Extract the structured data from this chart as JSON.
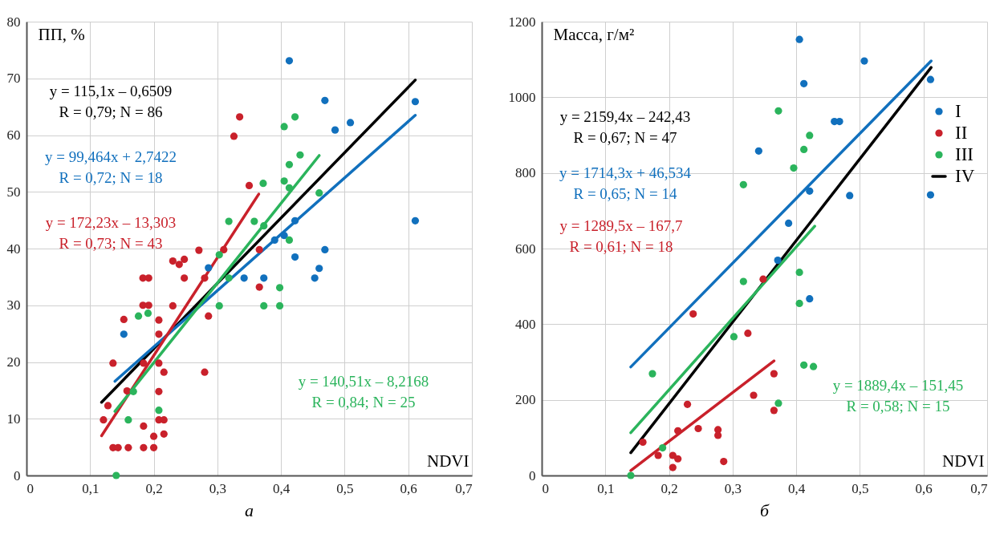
{
  "chart_data": [
    {
      "type": "scatter",
      "title": "а",
      "xlabel": "NDVI",
      "ylabel": "ПП, %",
      "xlim": [
        0,
        0.7
      ],
      "xticks": [
        0,
        {
          "value": 0.1,
          "label": "0,1"
        },
        {
          "value": 0.2,
          "label": "0,2"
        },
        {
          "value": 0.3,
          "label": "0,3"
        },
        {
          "value": 0.4,
          "label": "0,4"
        },
        {
          "value": 0.5,
          "label": "0,5"
        },
        {
          "value": 0.6,
          "label": "0,6"
        },
        {
          "value": 0.7,
          "label": "0,7"
        }
      ],
      "ylim": [
        0,
        80
      ],
      "yticks": [
        0,
        10,
        20,
        30,
        40,
        50,
        60,
        70,
        80
      ],
      "grid": true,
      "line_style": "solid",
      "annotations": [
        "y = 115,1x – 0,6509\nR = 0,79; N = 86",
        "y = 99,464x + 2,7422\nR = 0,72; N = 18",
        "y = 172,23x – 13,303\nR = 0,73; N = 43",
        "y = 140,51x – 8,2168\nR = 0,84; N = 25"
      ],
      "series": [
        {
          "marker": "circle",
          "color": "#1170bd",
          "x": [
            0.153,
            0.286,
            0.342,
            0.373,
            0.413,
            0.469,
            0.611,
            0.509,
            0.485,
            0.422,
            0.611,
            0.39,
            0.405,
            0.469,
            0.422,
            0.46,
            0.453
          ],
          "values": [
            24.9,
            36.6,
            34.8,
            34.8,
            73.1,
            66.1,
            65.9,
            62.2,
            60.9,
            44.9,
            44.9,
            41.5,
            42.3,
            39.8,
            38.5,
            36.5,
            34.8
          ]
        },
        {
          "marker": "circle",
          "color": "#c9212b",
          "x": [
            0.335,
            0.326,
            0.35,
            0.271,
            0.31,
            0.248,
            0.23,
            0.24,
            0.248,
            0.28,
            0.183,
            0.192,
            0.183,
            0.192,
            0.23,
            0.366,
            0.366,
            0.153,
            0.286,
            0.208,
            0.208,
            0.136,
            0.184,
            0.208,
            0.216,
            0.28,
            0.158,
            0.208,
            0.128,
            0.121,
            0.208,
            0.216,
            0.184,
            0.216,
            0.2,
            0.136,
            0.144,
            0.16,
            0.184,
            0.2
          ],
          "values": [
            63.2,
            59.8,
            51.1,
            39.7,
            39.8,
            38.1,
            37.8,
            37.2,
            34.8,
            34.8,
            34.8,
            34.8,
            30.0,
            30.0,
            29.9,
            39.8,
            33.2,
            27.5,
            28.1,
            27.4,
            24.9,
            19.8,
            19.8,
            19.8,
            18.2,
            18.2,
            14.9,
            14.8,
            12.3,
            9.8,
            9.8,
            9.8,
            8.7,
            7.3,
            6.9,
            4.9,
            4.9,
            4.9,
            4.9,
            4.9
          ]
        },
        {
          "marker": "circle",
          "color": "#2bb45c",
          "x": [
            0.141,
            0.16,
            0.168,
            0.208,
            0.176,
            0.191,
            0.303,
            0.303,
            0.318,
            0.318,
            0.358,
            0.372,
            0.422,
            0.405,
            0.43,
            0.413,
            0.405,
            0.413,
            0.46,
            0.373,
            0.413,
            0.398,
            0.373,
            0.398
          ],
          "values": [
            0,
            9.8,
            14.8,
            11.5,
            28.1,
            28.6,
            29.9,
            38.9,
            44.8,
            34.8,
            44.8,
            51.5,
            63.2,
            61.5,
            56.5,
            54.8,
            51.9,
            50.7,
            49.8,
            44.0,
            41.5,
            33.1,
            29.9,
            29.9
          ]
        },
        {
          "type": "line",
          "marker": "none",
          "color": "#000000",
          "x": [
            0.118,
            0.611
          ],
          "values": [
            12.9,
            69.7
          ]
        },
        {
          "type": "line",
          "marker": "none",
          "color": "#1170bd",
          "x": [
            0.139,
            0.611
          ],
          "values": [
            16.6,
            63.5
          ]
        },
        {
          "type": "line",
          "marker": "none",
          "color": "#c9212b",
          "x": [
            0.118,
            0.365
          ],
          "values": [
            7.0,
            49.6
          ]
        },
        {
          "type": "line",
          "marker": "none",
          "color": "#2bb45c",
          "x": [
            0.139,
            0.46
          ],
          "values": [
            11.3,
            56.4
          ]
        }
      ]
    },
    {
      "type": "scatter",
      "title": "б",
      "xlabel": "NDVI",
      "ylabel": "Масса, г/м²",
      "xlim": [
        0,
        0.7
      ],
      "xticks": [
        0,
        {
          "value": 0.1,
          "label": "0,1"
        },
        {
          "value": 0.2,
          "label": "0,2"
        },
        {
          "value": 0.3,
          "label": "0,3"
        },
        {
          "value": 0.4,
          "label": "0,4"
        },
        {
          "value": 0.5,
          "label": "0,5"
        },
        {
          "value": 0.6,
          "label": "0,6"
        },
        {
          "value": 0.7,
          "label": "0,7"
        }
      ],
      "ylim": [
        0,
        1200
      ],
      "yticks": [
        0,
        200,
        400,
        600,
        800,
        1000,
        1200
      ],
      "grid": true,
      "line_style": "solid",
      "legend": "top right",
      "annotations": [
        "y = 2159,4x – 242,43\nR = 0,67; N = 47",
        "y = 1714,3x + 46,534\nR = 0,65; N = 14",
        "y = 1289,5x – 167,7\nR = 0,61; N = 18",
        "y = 1889,4x – 151,45\nR = 0,58; N = 15"
      ],
      "series": [
        {
          "name": "I",
          "marker": "circle",
          "color": "#1170bd",
          "x": [
            0.405,
            0.507,
            0.412,
            0.611,
            0.46,
            0.468,
            0.341,
            0.421,
            0.484,
            0.611,
            0.388,
            0.371,
            0.421
          ],
          "values": [
            1153,
            1096,
            1036,
            1047,
            936,
            936,
            858,
            752,
            740,
            742,
            667,
            569,
            467
          ]
        },
        {
          "name": "II",
          "marker": "circle",
          "color": "#c9212b",
          "x": [
            0.238,
            0.324,
            0.229,
            0.214,
            0.246,
            0.277,
            0.277,
            0.159,
            0.183,
            0.206,
            0.214,
            0.206,
            0.286,
            0.333,
            0.348,
            0.365,
            0.365
          ],
          "values": [
            427,
            376,
            188,
            118,
            124,
            121,
            106,
            88,
            53,
            53,
            44,
            21,
            37,
            212,
            519,
            269,
            172
          ]
        },
        {
          "name": "III",
          "marker": "circle",
          "color": "#2bb45c",
          "x": [
            0.14,
            0.19,
            0.174,
            0.317,
            0.302,
            0.405,
            0.405,
            0.412,
            0.427,
            0.372,
            0.372,
            0.421,
            0.412,
            0.396,
            0.317
          ],
          "values": [
            0,
            73,
            269,
            513,
            367,
            537,
            455,
            292,
            288,
            191,
            964,
            899,
            862,
            813,
            769
          ]
        },
        {
          "name": "IV",
          "type": "line",
          "marker": "none",
          "color": "#000000",
          "x": [
            0.14,
            0.612
          ],
          "values": [
            60,
            1079
          ]
        },
        {
          "type": "line",
          "marker": "none",
          "color": "#1170bd",
          "x": [
            0.14,
            0.612
          ],
          "values": [
            287,
            1096
          ]
        },
        {
          "type": "line",
          "marker": "none",
          "color": "#c9212b",
          "x": [
            0.14,
            0.365
          ],
          "values": [
            13,
            303
          ]
        },
        {
          "type": "line",
          "marker": "none",
          "color": "#2bb45c",
          "x": [
            0.14,
            0.429
          ],
          "values": [
            113,
            659
          ]
        }
      ]
    }
  ]
}
